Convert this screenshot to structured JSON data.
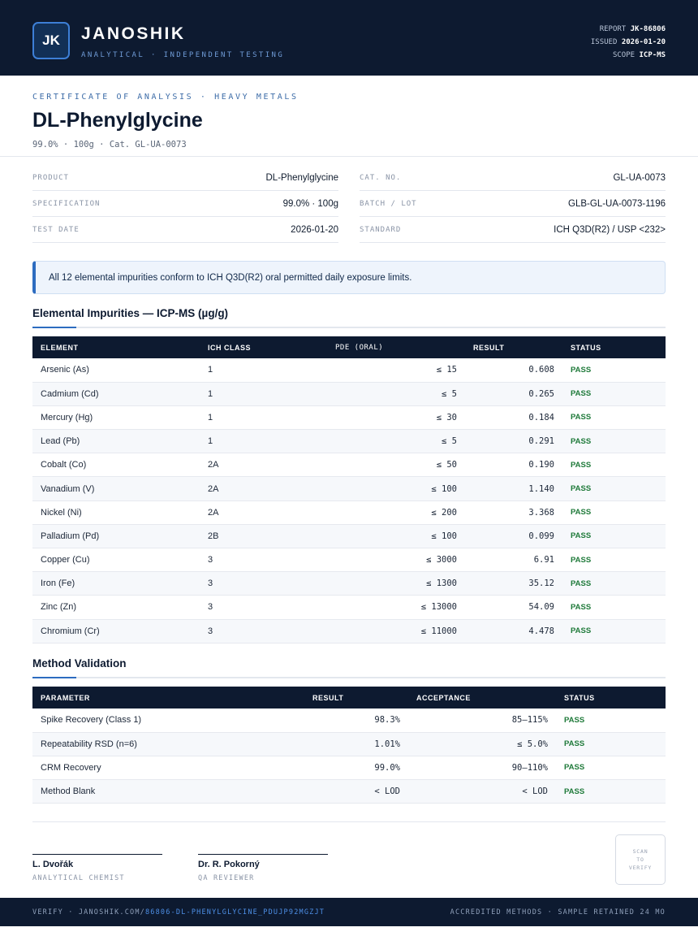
{
  "header": {
    "logo": "JK",
    "brand": "JANOSHIK",
    "tagline": "ANALYTICAL · INDEPENDENT TESTING",
    "report_label": "REPORT",
    "report_value": "JK-86806",
    "issued_label": "ISSUED",
    "issued_value": "2026-01-20",
    "scope_label": "SCOPE",
    "scope_value": "ICP-MS"
  },
  "document": {
    "cert_label": "CERTIFICATE OF ANALYSIS · HEAVY METALS",
    "title": "DL-Phenylglycine",
    "subtitle": "99.0% · 100g  ·  Cat. GL-UA-0073"
  },
  "info": {
    "left": [
      {
        "key": "PRODUCT",
        "value": "DL-Phenylglycine"
      },
      {
        "key": "SPECIFICATION",
        "value": "99.0% · 100g"
      },
      {
        "key": "TEST DATE",
        "value": "2026-01-20"
      }
    ],
    "right": [
      {
        "key": "CAT. NO.",
        "value": "GL-UA-0073"
      },
      {
        "key": "BATCH / LOT",
        "value": "GLB-GL-UA-0073-1196"
      },
      {
        "key": "STANDARD",
        "value": "ICH Q3D(R2) / USP <232>"
      }
    ]
  },
  "notice": "All 12 elemental impurities conform to ICH Q3D(R2) oral permitted daily exposure limits.",
  "impurities": {
    "title": "Elemental Impurities — ICP-MS (µg/g)",
    "headers": [
      "ELEMENT",
      "ICH CLASS",
      "PDE (ORAL)",
      "RESULT",
      "STATUS"
    ],
    "rows": [
      {
        "element": "Arsenic (As)",
        "class": "1",
        "pde": "≤ 15",
        "result": "0.608",
        "status": "PASS"
      },
      {
        "element": "Cadmium (Cd)",
        "class": "1",
        "pde": "≤ 5",
        "result": "0.265",
        "status": "PASS"
      },
      {
        "element": "Mercury (Hg)",
        "class": "1",
        "pde": "≤ 30",
        "result": "0.184",
        "status": "PASS"
      },
      {
        "element": "Lead (Pb)",
        "class": "1",
        "pde": "≤ 5",
        "result": "0.291",
        "status": "PASS"
      },
      {
        "element": "Cobalt (Co)",
        "class": "2A",
        "pde": "≤ 50",
        "result": "0.190",
        "status": "PASS"
      },
      {
        "element": "Vanadium (V)",
        "class": "2A",
        "pde": "≤ 100",
        "result": "1.140",
        "status": "PASS"
      },
      {
        "element": "Nickel (Ni)",
        "class": "2A",
        "pde": "≤ 200",
        "result": "3.368",
        "status": "PASS"
      },
      {
        "element": "Palladium (Pd)",
        "class": "2B",
        "pde": "≤ 100",
        "result": "0.099",
        "status": "PASS"
      },
      {
        "element": "Copper (Cu)",
        "class": "3",
        "pde": "≤ 3000",
        "result": "6.91",
        "status": "PASS"
      },
      {
        "element": "Iron (Fe)",
        "class": "3",
        "pde": "≤ 1300",
        "result": "35.12",
        "status": "PASS"
      },
      {
        "element": "Zinc (Zn)",
        "class": "3",
        "pde": "≤ 13000",
        "result": "54.09",
        "status": "PASS"
      },
      {
        "element": "Chromium (Cr)",
        "class": "3",
        "pde": "≤ 11000",
        "result": "4.478",
        "status": "PASS"
      }
    ]
  },
  "validation": {
    "title": "Method Validation",
    "headers": [
      "PARAMETER",
      "RESULT",
      "ACCEPTANCE",
      "STATUS"
    ],
    "rows": [
      {
        "parameter": "Spike Recovery (Class 1)",
        "result": "98.3%",
        "acceptance": "85–115%",
        "status": "PASS"
      },
      {
        "parameter": "Repeatability RSD (n=6)",
        "result": "1.01%",
        "acceptance": "≤ 5.0%",
        "status": "PASS"
      },
      {
        "parameter": "CRM Recovery",
        "result": "99.0%",
        "acceptance": "90–110%",
        "status": "PASS"
      },
      {
        "parameter": "Method Blank",
        "result": "< LOD",
        "acceptance": "< LOD",
        "status": "PASS"
      }
    ]
  },
  "signatures": [
    {
      "name": "L. Dvořák",
      "role": "ANALYTICAL CHEMIST"
    },
    {
      "name": "Dr. R. Pokorný",
      "role": "QA REVIEWER"
    }
  ],
  "scan": {
    "line1": "SCAN",
    "line2": "TO",
    "line3": "VERIFY"
  },
  "footer": {
    "verify_prefix": "VERIFY · JANOSHIK.COM/",
    "verify_path": "86806-DL-PHENYLGLYCINE_PDUJP92MGZJT",
    "right": "ACCREDITED METHODS · SAMPLE RETAINED 24 MO"
  },
  "colors": {
    "navy": "#0d1a30",
    "accent": "#2d6cc0",
    "pass": "#1f7a3a"
  }
}
